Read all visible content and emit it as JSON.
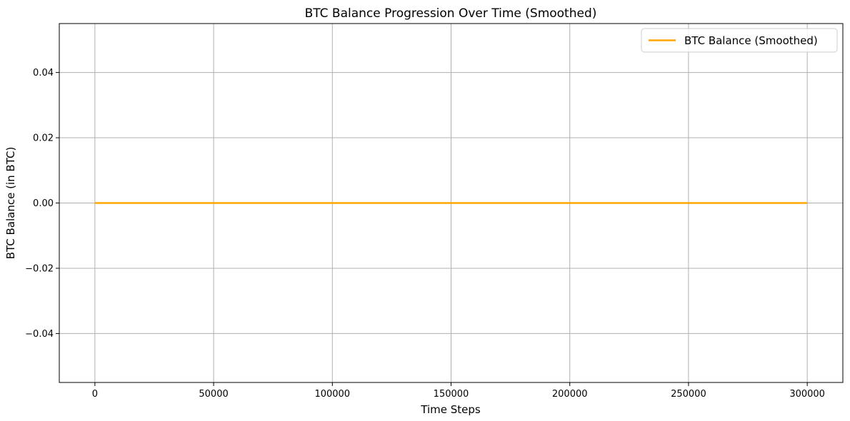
{
  "chart_data": {
    "type": "line",
    "title": "BTC Balance Progression Over Time (Smoothed)",
    "xlabel": "Time Steps",
    "ylabel": "BTC Balance (in BTC)",
    "xlim": [
      -15000,
      315000
    ],
    "ylim": [
      -0.055,
      0.055
    ],
    "x_ticks": [
      0,
      50000,
      100000,
      150000,
      200000,
      250000,
      300000
    ],
    "x_tick_labels": [
      "0",
      "50000",
      "100000",
      "150000",
      "200000",
      "250000",
      "300000"
    ],
    "y_ticks": [
      -0.04,
      -0.02,
      0.0,
      0.02,
      0.04
    ],
    "y_tick_labels": [
      "−0.04",
      "−0.02",
      "0.00",
      "0.02",
      "0.04"
    ],
    "grid": true,
    "legend_position": "top-right",
    "series": [
      {
        "name": "BTC Balance (Smoothed)",
        "color": "#ffa500",
        "x": [
          0,
          300000
        ],
        "y": [
          0.0,
          0.0
        ]
      }
    ]
  }
}
